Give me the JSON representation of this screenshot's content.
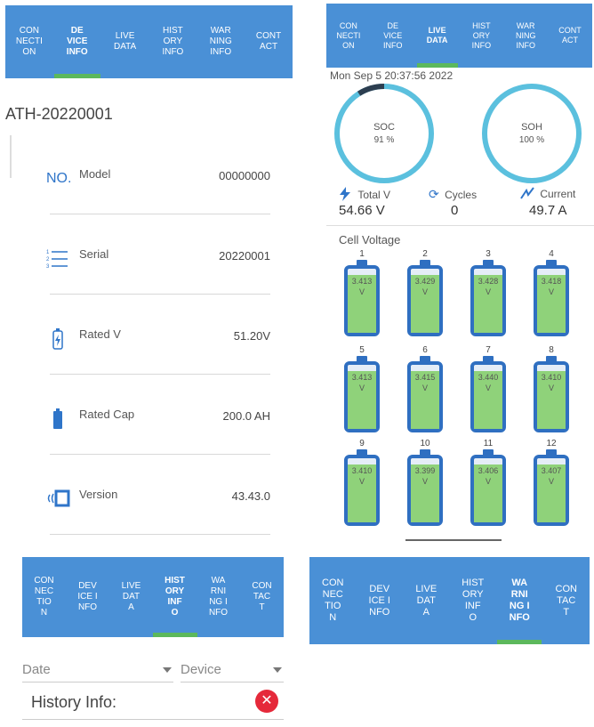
{
  "panel_device_info": {
    "tabs": [
      "CON\nNECTI\nON",
      "DE\nVICE\nINFO",
      "LIVE\nDATA",
      "HIST\nORY\nINFO",
      "WAR\nNING\nINFO",
      "CONT\nACT"
    ],
    "active_tab": 1,
    "device_id": "ATH-20220001",
    "rows": [
      {
        "icon": "number-icon",
        "label": "Model",
        "value": "00000000"
      },
      {
        "icon": "list-icon",
        "label": "Serial",
        "value": "20220001"
      },
      {
        "icon": "battery-charge-icon",
        "label": "Rated V",
        "value": "51.20V"
      },
      {
        "icon": "battery-icon",
        "label": "Rated Cap",
        "value": "200.0 AH"
      },
      {
        "icon": "version-icon",
        "label": "Version",
        "value": "43.43.0"
      }
    ]
  },
  "panel_live_data": {
    "tabs": [
      "CON\nNECTI\nON",
      "DE\nVICE\nINFO",
      "LIVE\nDATA",
      "HIST\nORY\nINFO",
      "WAR\nNING\nINFO",
      "CONT\nACT"
    ],
    "active_tab": 2,
    "datetime": "Mon Sep  5 20:37:56 2022",
    "soc": {
      "label": "SOC",
      "value": "91 %",
      "percent": 91
    },
    "soh": {
      "label": "SOH",
      "value": "100 %",
      "percent": 100
    },
    "stats": {
      "total_v": {
        "label": "Total V",
        "value": "54.66 V"
      },
      "cycles": {
        "label": "Cycles",
        "value": "0"
      },
      "current": {
        "label": "Current",
        "value": "49.7 A"
      }
    },
    "cell_voltage_title": "Cell Voltage",
    "cells": [
      {
        "n": "1",
        "v": "3.413\nV"
      },
      {
        "n": "2",
        "v": "3.429\nV"
      },
      {
        "n": "3",
        "v": "3.428\nV"
      },
      {
        "n": "4",
        "v": "3.418\nV"
      },
      {
        "n": "5",
        "v": "3.413\nV"
      },
      {
        "n": "6",
        "v": "3.415\nV"
      },
      {
        "n": "7",
        "v": "3.440\nV"
      },
      {
        "n": "8",
        "v": "3.410\nV"
      },
      {
        "n": "9",
        "v": "3.410\nV"
      },
      {
        "n": "10",
        "v": "3.399\nV"
      },
      {
        "n": "11",
        "v": "3.406\nV"
      },
      {
        "n": "12",
        "v": "3.407\nV"
      }
    ],
    "cell_fill_level": 0.9
  },
  "panel_history": {
    "tabs": [
      "CON\nNEC\nTIO\nN",
      "DEV\nICE I\nNFO",
      "LIVE\nDAT\nA",
      "HIST\nORY\nINF\nO",
      "WA\nRNI\nNG I\nNFO",
      "CON\nTAC\nT"
    ],
    "active_tab": 3,
    "date_placeholder": "Date",
    "device_placeholder": "Device",
    "history_label": "History Info:",
    "close_symbol": "✕"
  },
  "panel_warning": {
    "tabs": [
      "CON\nNEC\nTIO\nN",
      "DEV\nICE I\nNFO",
      "LIVE\nDAT\nA",
      "HIST\nORY\nINF\nO",
      "WA\nRNI\nNG I\nNFO",
      "CON\nTAC\nT"
    ],
    "active_tab": 4
  },
  "colors": {
    "tabbar": "#4a90d6",
    "indicator": "#5cb85c",
    "gauge": "#5bc0de",
    "gauge_dark": "#2c3e50",
    "cell_border": "#2f6fc1",
    "cell_fill": "#8fd27a",
    "close": "#e5293a"
  }
}
